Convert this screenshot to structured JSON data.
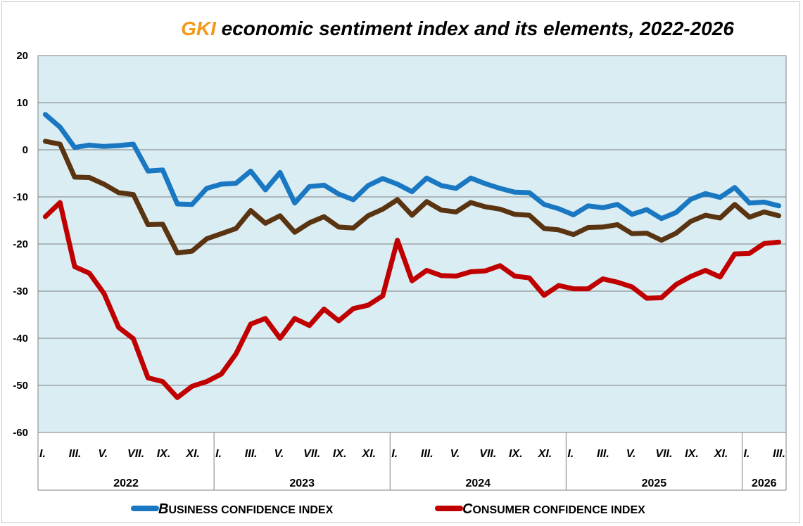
{
  "chart_data": {
    "type": "line",
    "title_brand": "GKI",
    "title_rest": " economic sentiment index and its elements, 2022-2026",
    "xlabel": "",
    "ylabel": "",
    "ylim": [
      -60,
      20
    ],
    "yticks": [
      20,
      10,
      0,
      -10,
      -20,
      -30,
      -40,
      -50,
      -60
    ],
    "grid": true,
    "plot_background": "#daedf3",
    "month_labels": [
      "I.",
      "III.",
      "V.",
      "VII.",
      "IX.",
      "XI."
    ],
    "years": [
      {
        "label": "2022",
        "months": 12,
        "tick_labels": [
          "I.",
          "III.",
          "V.",
          "VII.",
          "IX.",
          "XI."
        ]
      },
      {
        "label": "2023",
        "months": 12,
        "tick_labels": [
          "I.",
          "III.",
          "V.",
          "VII.",
          "IX.",
          "XI."
        ]
      },
      {
        "label": "2024",
        "months": 12,
        "tick_labels": [
          "I.",
          "III.",
          "V.",
          "VII.",
          "IX.",
          "XI."
        ]
      },
      {
        "label": "2025",
        "months": 12,
        "tick_labels": [
          "I.",
          "III.",
          "V.",
          "VII.",
          "IX.",
          "XI."
        ]
      },
      {
        "label": "2026",
        "months": 3,
        "tick_labels": [
          "I.",
          "III."
        ]
      }
    ],
    "series": [
      {
        "name": "Business confidence index",
        "color": "#1a78c2",
        "in_legend": true,
        "values": [
          7.5,
          4.8,
          0.5,
          1.0,
          0.7,
          0.9,
          1.2,
          -4.5,
          -4.3,
          -11.5,
          -11.6,
          -8.2,
          -7.3,
          -7.1,
          -4.5,
          -8.5,
          -4.8,
          -11.3,
          -7.8,
          -7.5,
          -9.4,
          -10.6,
          -7.6,
          -6.1,
          -7.3,
          -8.9,
          -6.0,
          -7.6,
          -8.2,
          -6.0,
          -7.2,
          -8.2,
          -9.0,
          -9.1,
          -11.6,
          -12.5,
          -13.8,
          -11.9,
          -12.3,
          -11.6,
          -13.7,
          -12.7,
          -14.6,
          -13.3,
          -10.5,
          -9.3,
          -10.1,
          -8.0,
          -11.3,
          -11.1,
          -11.9
        ]
      },
      {
        "name": "",
        "color": "#5a3310",
        "in_legend": false,
        "values": [
          1.8,
          1.2,
          -5.8,
          -5.9,
          -7.3,
          -9.1,
          -9.5,
          -15.9,
          -15.8,
          -21.9,
          -21.5,
          -18.9,
          -17.8,
          -16.7,
          -12.9,
          -15.6,
          -14.0,
          -17.5,
          -15.5,
          -14.2,
          -16.4,
          -16.6,
          -14.0,
          -12.6,
          -10.6,
          -13.9,
          -11.0,
          -12.8,
          -13.2,
          -11.2,
          -12.1,
          -12.6,
          -13.7,
          -13.9,
          -16.7,
          -17.0,
          -18.0,
          -16.5,
          -16.4,
          -15.9,
          -17.8,
          -17.7,
          -19.2,
          -17.7,
          -15.2,
          -13.9,
          -14.5,
          -11.6,
          -14.3,
          -13.2,
          -14.0
        ]
      },
      {
        "name": "Consumer confidence index",
        "color": "#c00000",
        "in_legend": true,
        "values": [
          -14.2,
          -11.2,
          -24.8,
          -26.2,
          -30.5,
          -37.7,
          -40.1,
          -48.4,
          -49.2,
          -52.6,
          -50.2,
          -49.2,
          -47.6,
          -43.3,
          -37.0,
          -35.8,
          -40.0,
          -35.8,
          -37.3,
          -33.8,
          -36.3,
          -33.7,
          -33.0,
          -31.0,
          -19.2,
          -27.8,
          -25.6,
          -26.7,
          -26.8,
          -25.9,
          -25.7,
          -24.6,
          -26.8,
          -27.2,
          -30.9,
          -28.8,
          -29.5,
          -29.5,
          -27.4,
          -28.1,
          -29.1,
          -31.5,
          -31.4,
          -28.6,
          -26.9,
          -25.6,
          -27.0,
          -22.1,
          -22.0,
          -19.9,
          -19.6
        ]
      }
    ],
    "legend": {
      "placement": "bottom",
      "items": [
        {
          "caps": "B",
          "rest": "USINESS CONFIDENCE INDEX",
          "color": "#1a78c2"
        },
        {
          "caps": "C",
          "rest": "ONSUMER CONFIDENCE INDEX",
          "color": "#c00000"
        }
      ]
    }
  }
}
